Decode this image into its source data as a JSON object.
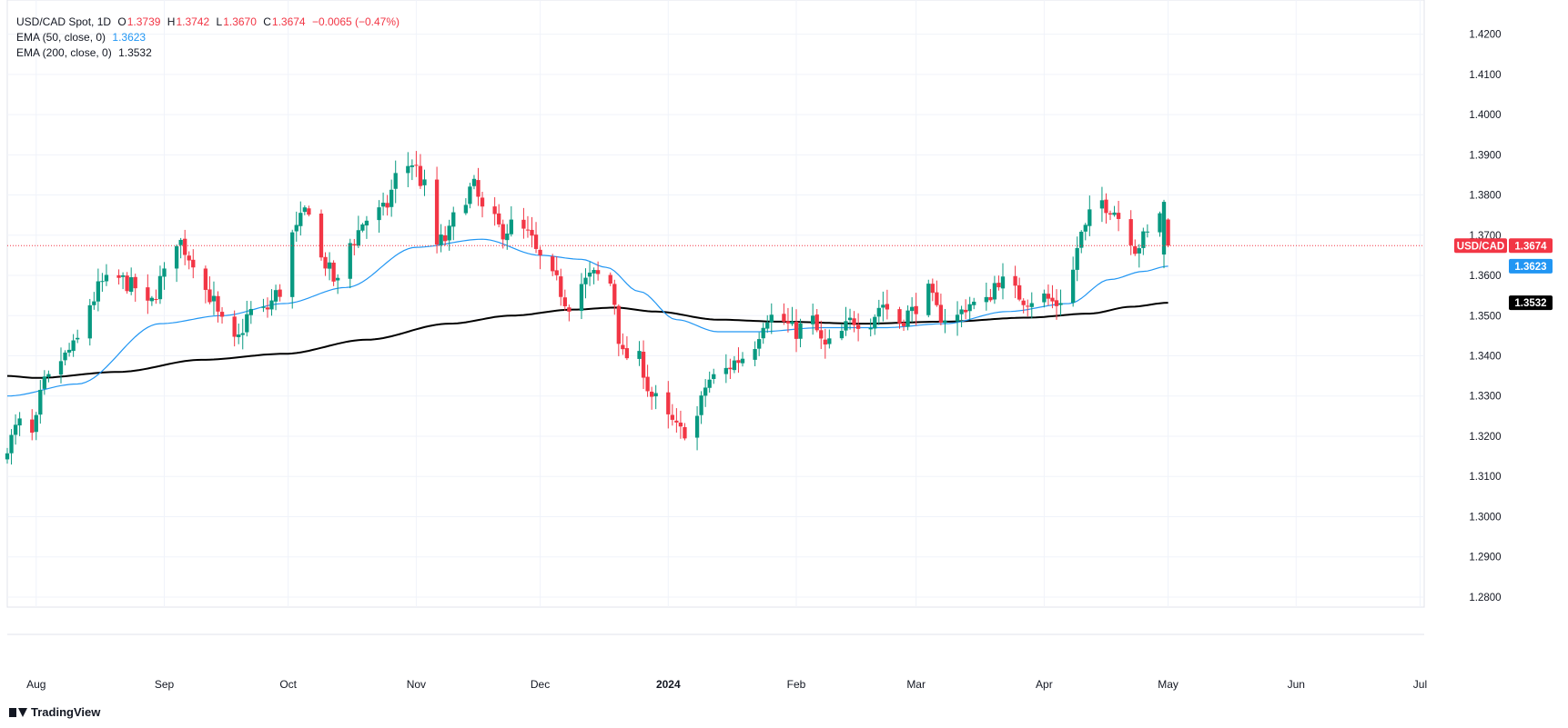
{
  "legend": {
    "symbol": "USD/CAD Spot, 1D",
    "o_label": "O",
    "o_value": "1.3739",
    "h_label": "H",
    "h_value": "1.3742",
    "l_label": "L",
    "l_value": "1.3670",
    "c_label": "C",
    "c_value": "1.3674",
    "change": "−0.0065 (−0.47%)",
    "ema50_label": "EMA (50, close, 0)",
    "ema50_value": "1.3623",
    "ema200_label": "EMA (200, close, 0)",
    "ema200_value": "1.3532"
  },
  "brand": {
    "name": "TradingView",
    "icon": "tradingview-logo-icon"
  },
  "colors": {
    "up": "#089981",
    "down": "#f23645",
    "ema50": "#2196f3",
    "ema200": "#000000",
    "grid": "#f0f3fa",
    "text": "#131722",
    "axis_text": "#787b86"
  },
  "chart_data": {
    "type": "candlestick",
    "interval": "1D",
    "y_ticks": [
      "1.2800",
      "1.2900",
      "1.3000",
      "1.3100",
      "1.3200",
      "1.3300",
      "1.3400",
      "1.3500",
      "1.3600",
      "1.3700",
      "1.3800",
      "1.3900",
      "1.4000",
      "1.4100",
      "1.4200"
    ],
    "ylim": [
      1.2775,
      1.4285
    ],
    "x_ticks": [
      {
        "label": "Aug",
        "day": 0
      },
      {
        "label": "Sep",
        "day": 31
      },
      {
        "label": "Oct",
        "day": 61
      },
      {
        "label": "Nov",
        "day": 92
      },
      {
        "label": "Dec",
        "day": 122
      },
      {
        "label": "2024",
        "day": 153,
        "bold": true
      },
      {
        "label": "Feb",
        "day": 184
      },
      {
        "label": "Mar",
        "day": 213
      },
      {
        "label": "Apr",
        "day": 244
      },
      {
        "label": "May",
        "day": 274
      },
      {
        "label": "Jun",
        "day": 305
      },
      {
        "label": "Jul",
        "day": 335
      }
    ],
    "xlim_days": [
      -7,
      336
    ],
    "last_price_label": "USD/CAD",
    "last_price": "1.3674",
    "ema50_last": "1.3623",
    "ema200_last": "1.3532",
    "close_anchors": [
      [
        -7,
        1.318
      ],
      [
        -4,
        1.323
      ],
      [
        -1,
        1.32
      ],
      [
        2,
        1.333
      ],
      [
        6,
        1.339
      ],
      [
        9,
        1.342
      ],
      [
        13,
        1.353
      ],
      [
        16,
        1.358
      ],
      [
        20,
        1.359
      ],
      [
        24,
        1.357
      ],
      [
        27,
        1.352
      ],
      [
        31,
        1.36
      ],
      [
        34,
        1.369
      ],
      [
        38,
        1.364
      ],
      [
        42,
        1.355
      ],
      [
        45,
        1.348
      ],
      [
        48,
        1.343
      ],
      [
        52,
        1.351
      ],
      [
        55,
        1.351
      ],
      [
        59,
        1.356
      ],
      [
        62,
        1.37
      ],
      [
        66,
        1.377
      ],
      [
        69,
        1.364
      ],
      [
        73,
        1.358
      ],
      [
        76,
        1.368
      ],
      [
        80,
        1.374
      ],
      [
        84,
        1.376
      ],
      [
        88,
        1.386
      ],
      [
        91,
        1.388
      ],
      [
        94,
        1.382
      ],
      [
        96,
        1.367
      ],
      [
        99,
        1.369
      ],
      [
        103,
        1.379
      ],
      [
        106,
        1.382
      ],
      [
        108,
        1.376
      ],
      [
        110,
        1.374
      ],
      [
        113,
        1.371
      ],
      [
        116,
        1.373
      ],
      [
        119,
        1.37
      ],
      [
        122,
        1.364
      ],
      [
        125,
        1.359
      ],
      [
        129,
        1.353
      ],
      [
        132,
        1.358
      ],
      [
        135,
        1.36
      ],
      [
        139,
        1.358
      ],
      [
        142,
        1.34
      ],
      [
        146,
        1.339
      ],
      [
        149,
        1.33
      ],
      [
        153,
        1.324
      ],
      [
        156,
        1.321
      ],
      [
        159,
        1.323
      ],
      [
        163,
        1.334
      ],
      [
        166,
        1.336
      ],
      [
        170,
        1.339
      ],
      [
        173,
        1.342
      ],
      [
        177,
        1.35
      ],
      [
        180,
        1.349
      ],
      [
        184,
        1.346
      ],
      [
        187,
        1.35
      ],
      [
        191,
        1.342
      ],
      [
        194,
        1.345
      ],
      [
        198,
        1.349
      ],
      [
        201,
        1.348
      ],
      [
        205,
        1.353
      ],
      [
        208,
        1.348
      ],
      [
        212,
        1.351
      ],
      [
        215,
        1.357
      ],
      [
        219,
        1.35
      ],
      [
        222,
        1.349
      ],
      [
        226,
        1.353
      ],
      [
        229,
        1.352
      ],
      [
        233,
        1.359
      ],
      [
        236,
        1.356
      ],
      [
        240,
        1.354
      ],
      [
        243,
        1.355
      ],
      [
        247,
        1.353
      ],
      [
        250,
        1.358
      ],
      [
        253,
        1.37
      ],
      [
        257,
        1.379
      ],
      [
        260,
        1.377
      ],
      [
        264,
        1.372
      ],
      [
        266,
        1.367
      ],
      [
        269,
        1.37
      ],
      [
        271,
        1.378
      ],
      [
        273,
        1.3739
      ],
      [
        274,
        1.3674
      ]
    ],
    "ema50_anchors": [
      [
        -7,
        1.33
      ],
      [
        10,
        1.333
      ],
      [
        30,
        1.348
      ],
      [
        45,
        1.35
      ],
      [
        60,
        1.353
      ],
      [
        75,
        1.357
      ],
      [
        92,
        1.367
      ],
      [
        108,
        1.369
      ],
      [
        122,
        1.365
      ],
      [
        132,
        1.364
      ],
      [
        138,
        1.362
      ],
      [
        146,
        1.356
      ],
      [
        155,
        1.349
      ],
      [
        165,
        1.346
      ],
      [
        175,
        1.346
      ],
      [
        190,
        1.347
      ],
      [
        205,
        1.347
      ],
      [
        220,
        1.348
      ],
      [
        235,
        1.351
      ],
      [
        250,
        1.353
      ],
      [
        260,
        1.359
      ],
      [
        268,
        1.361
      ],
      [
        274,
        1.3623
      ]
    ],
    "ema200_anchors": [
      [
        -7,
        1.335
      ],
      [
        0,
        1.3345
      ],
      [
        20,
        1.336
      ],
      [
        40,
        1.339
      ],
      [
        60,
        1.3405
      ],
      [
        80,
        1.344
      ],
      [
        100,
        1.348
      ],
      [
        115,
        1.35
      ],
      [
        130,
        1.3515
      ],
      [
        140,
        1.352
      ],
      [
        150,
        1.351
      ],
      [
        165,
        1.349
      ],
      [
        180,
        1.3485
      ],
      [
        200,
        1.348
      ],
      [
        220,
        1.3485
      ],
      [
        240,
        1.3495
      ],
      [
        255,
        1.3505
      ],
      [
        265,
        1.3522
      ],
      [
        274,
        1.3532
      ]
    ]
  }
}
